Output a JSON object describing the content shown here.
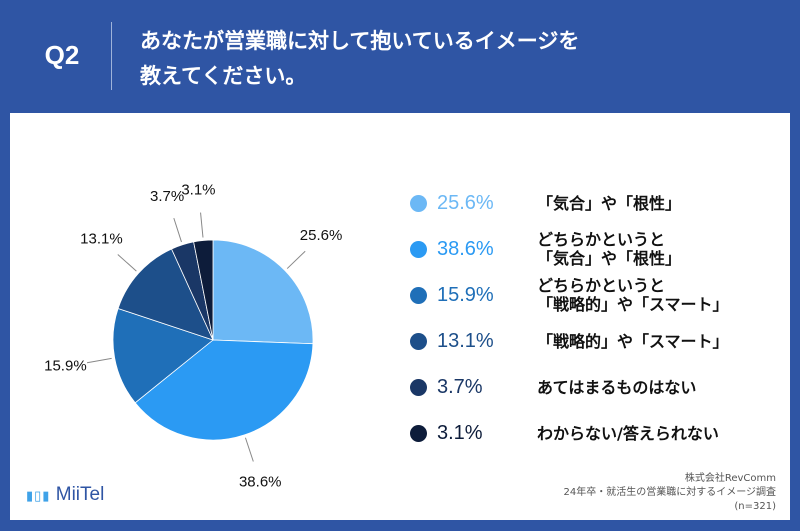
{
  "header": {
    "q": "Q2",
    "title": "あなたが営業職に対して抱いているイメージを\n教えてください。"
  },
  "chart_data": {
    "type": "pie",
    "categories": [
      "「気合」や「根性」",
      "どちらかというと\n「気合」や「根性」",
      "どちらかというと\n「戦略的」や「スマート」",
      "「戦略的」や「スマート」",
      "あてはまるものはない",
      "わからない/答えられない"
    ],
    "values": [
      25.6,
      38.6,
      15.9,
      13.1,
      3.7,
      3.1
    ],
    "value_labels": [
      "25.6%",
      "38.6%",
      "15.9%",
      "13.1%",
      "3.7%",
      "3.1%"
    ],
    "colors": [
      "#6cb8f5",
      "#2b9af3",
      "#1f6fb8",
      "#1d4f8a",
      "#1a3766",
      "#0d1c3a"
    ],
    "start_angle": 0,
    "direction": "clockwise"
  },
  "footer": {
    "logo": "MiiTel",
    "source": [
      "株式会社RevComm",
      "24年卒・就活生の営業職に対するイメージ調査",
      "(n=321)"
    ]
  }
}
